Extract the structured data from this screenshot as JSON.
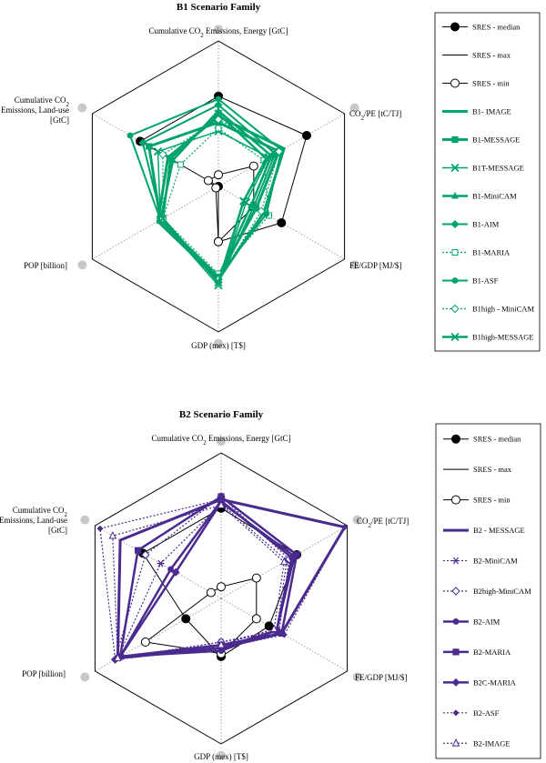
{
  "charts": [
    {
      "type": "radar",
      "title": "B1 Scenario Family",
      "axes": [
        {
          "lines": [
            {
              "pre": "Cumulative CO",
              "sub": "2",
              "post": " Emissions, Energy [GtC]"
            }
          ]
        },
        {
          "lines": [
            {
              "pre": "CO",
              "sub": "2",
              "post": "/PE [tC/TJ]"
            }
          ]
        },
        {
          "lines": [
            {
              "pre": "FE/GDP [MJ/$]",
              "sub": "",
              "post": ""
            }
          ]
        },
        {
          "lines": [
            {
              "pre": "GDP (mex) [T$]",
              "sub": "",
              "post": ""
            }
          ]
        },
        {
          "lines": [
            {
              "pre": "POP [billion]",
              "sub": "",
              "post": ""
            }
          ]
        },
        {
          "lines": [
            {
              "pre": "Cumulative CO",
              "sub": "2",
              "post": ""
            },
            {
              "pre": "Emissions, Land-use",
              "sub": "",
              "post": ""
            },
            {
              "pre": "[GtC]",
              "sub": "",
              "post": ""
            }
          ]
        }
      ],
      "series": [
        {
          "name": "SRES - median",
          "color": "#000000",
          "style": "solid",
          "width": 1,
          "marker": "filled-circle",
          "values": [
            0.62,
            0.7,
            0.5,
            0.38,
            0.0,
            0.62
          ]
        },
        {
          "name": "SRES - max",
          "color": "#000000",
          "style": "solid",
          "width": 1,
          "marker": "none",
          "values": [
            1,
            1,
            1,
            1,
            1,
            1
          ]
        },
        {
          "name": "SRES - min",
          "color": "#000000",
          "style": "solid",
          "width": 1,
          "marker": "open-circle",
          "values": [
            0.08,
            0.28,
            0.28,
            0.38,
            0.02,
            0.08
          ]
        },
        {
          "name": "B1- IMAGE",
          "color": "#00a36c",
          "style": "solid",
          "width": 3,
          "marker": "none",
          "values": [
            0.48,
            0.52,
            0.36,
            0.64,
            0.48,
            0.4
          ]
        },
        {
          "name": "B1-MESSAGE",
          "color": "#00a36c",
          "style": "solid",
          "width": 3,
          "marker": "square",
          "values": [
            0.44,
            0.48,
            0.3,
            0.62,
            0.46,
            0.55
          ]
        },
        {
          "name": "B1T-MESSAGE",
          "color": "#00a36c",
          "style": "solid",
          "width": 1.5,
          "marker": "x",
          "values": [
            0.38,
            0.4,
            0.22,
            0.68,
            0.46,
            0.48
          ]
        },
        {
          "name": "B1-MiniCAM",
          "color": "#00a36c",
          "style": "solid",
          "width": 2.5,
          "marker": "triangle",
          "values": [
            0.52,
            0.42,
            0.26,
            0.62,
            0.46,
            0.36
          ]
        },
        {
          "name": "B1-AIM",
          "color": "#00a36c",
          "style": "solid",
          "width": 2,
          "marker": "diamond",
          "values": [
            0.56,
            0.45,
            0.28,
            0.66,
            0.45,
            0.6
          ]
        },
        {
          "name": "B1-MARIA",
          "color": "#00a36c",
          "style": "dotted",
          "width": 1.2,
          "marker": "open-square",
          "values": [
            0.4,
            0.36,
            0.4,
            0.6,
            0.44,
            0.3
          ]
        },
        {
          "name": "B1-ASF",
          "color": "#00a36c",
          "style": "solid",
          "width": 2,
          "marker": "circle",
          "values": [
            0.6,
            0.5,
            0.38,
            0.62,
            0.46,
            0.7
          ]
        },
        {
          "name": "B1high - MiniCAM",
          "color": "#00a36c",
          "style": "dotted",
          "width": 1.2,
          "marker": "open-diamond",
          "values": [
            0.46,
            0.48,
            0.34,
            0.64,
            0.44,
            0.44
          ]
        },
        {
          "name": "B1high-MESSAGE",
          "color": "#00a36c",
          "style": "solid",
          "width": 2.5,
          "marker": "x",
          "values": [
            0.5,
            0.38,
            0.2,
            0.66,
            0.44,
            0.38
          ]
        }
      ]
    },
    {
      "type": "radar",
      "title": "B2 Scenario Family",
      "axes": [
        {
          "lines": [
            {
              "pre": "Cumulative CO",
              "sub": "2",
              "post": " Emissions, Energy [GtC]"
            }
          ]
        },
        {
          "lines": [
            {
              "pre": "CO",
              "sub": "2",
              "post": "/PE [tC/TJ]"
            }
          ]
        },
        {
          "lines": [
            {
              "pre": "FE/GDP [MJ/$]",
              "sub": "",
              "post": ""
            }
          ]
        },
        {
          "lines": [
            {
              "pre": "GDP (mex) [T$]",
              "sub": "",
              "post": ""
            }
          ]
        },
        {
          "lines": [
            {
              "pre": "POP [billion]",
              "sub": "",
              "post": ""
            }
          ]
        },
        {
          "lines": [
            {
              "pre": "Cumulative CO",
              "sub": "2",
              "post": ""
            },
            {
              "pre": "Emissions, Land-use",
              "sub": "",
              "post": ""
            },
            {
              "pre": "[GtC]",
              "sub": "",
              "post": ""
            }
          ]
        }
      ],
      "series": [
        {
          "name": "SRES - median",
          "color": "#000000",
          "style": "solid",
          "width": 1,
          "marker": "filled-circle",
          "values": [
            0.62,
            0.6,
            0.38,
            0.4,
            0.28,
            0.62
          ]
        },
        {
          "name": "SRES - max",
          "color": "#000000",
          "style": "solid",
          "width": 1,
          "marker": "none",
          "values": [
            1,
            1,
            1,
            1,
            1,
            1
          ]
        },
        {
          "name": "SRES - min",
          "color": "#000000",
          "style": "solid",
          "width": 1,
          "marker": "open-circle",
          "values": [
            0.08,
            0.28,
            0.28,
            0.38,
            0.6,
            0.08
          ]
        },
        {
          "name": "B2 - MESSAGE",
          "color": "#4b2a8f",
          "style": "solid",
          "width": 3,
          "marker": "none",
          "values": [
            0.68,
            0.98,
            0.48,
            0.34,
            0.82,
            0.8
          ]
        },
        {
          "name": "B2-MiniCAM",
          "color": "#4b2a8f",
          "style": "dotted",
          "width": 1.2,
          "marker": "asterisk",
          "values": [
            0.65,
            0.52,
            0.44,
            0.3,
            0.82,
            0.48
          ]
        },
        {
          "name": "B2high-MiniCAM",
          "color": "#4b2a8f",
          "style": "dotted",
          "width": 1.2,
          "marker": "open-diamond",
          "values": [
            0.7,
            0.54,
            0.46,
            0.3,
            0.84,
            0.6
          ]
        },
        {
          "name": "B2-AIM",
          "color": "#4b2a8f",
          "style": "solid",
          "width": 2.5,
          "marker": "circle",
          "values": [
            0.67,
            0.56,
            0.44,
            0.36,
            0.8,
            0.4
          ]
        },
        {
          "name": "B2-MARIA",
          "color": "#4b2a8f",
          "style": "solid",
          "width": 2.5,
          "marker": "square",
          "values": [
            0.7,
            0.6,
            0.48,
            0.32,
            0.8,
            0.66
          ]
        },
        {
          "name": "B2C-MARIA",
          "color": "#4b2a8f",
          "style": "solid",
          "width": 2.5,
          "marker": "diamond",
          "values": [
            0.66,
            0.58,
            0.44,
            0.34,
            0.8,
            0.36
          ]
        },
        {
          "name": "B2-ASF",
          "color": "#4b2a8f",
          "style": "dotted",
          "width": 1.2,
          "marker": "diamond-dot",
          "values": [
            0.68,
            0.98,
            0.5,
            0.34,
            0.84,
            0.96
          ]
        },
        {
          "name": "B2-IMAGE",
          "color": "#4b2a8f",
          "style": "dotted",
          "width": 1.2,
          "marker": "open-triangle",
          "values": [
            0.64,
            0.5,
            0.42,
            0.32,
            0.82,
            0.86
          ]
        }
      ]
    }
  ]
}
